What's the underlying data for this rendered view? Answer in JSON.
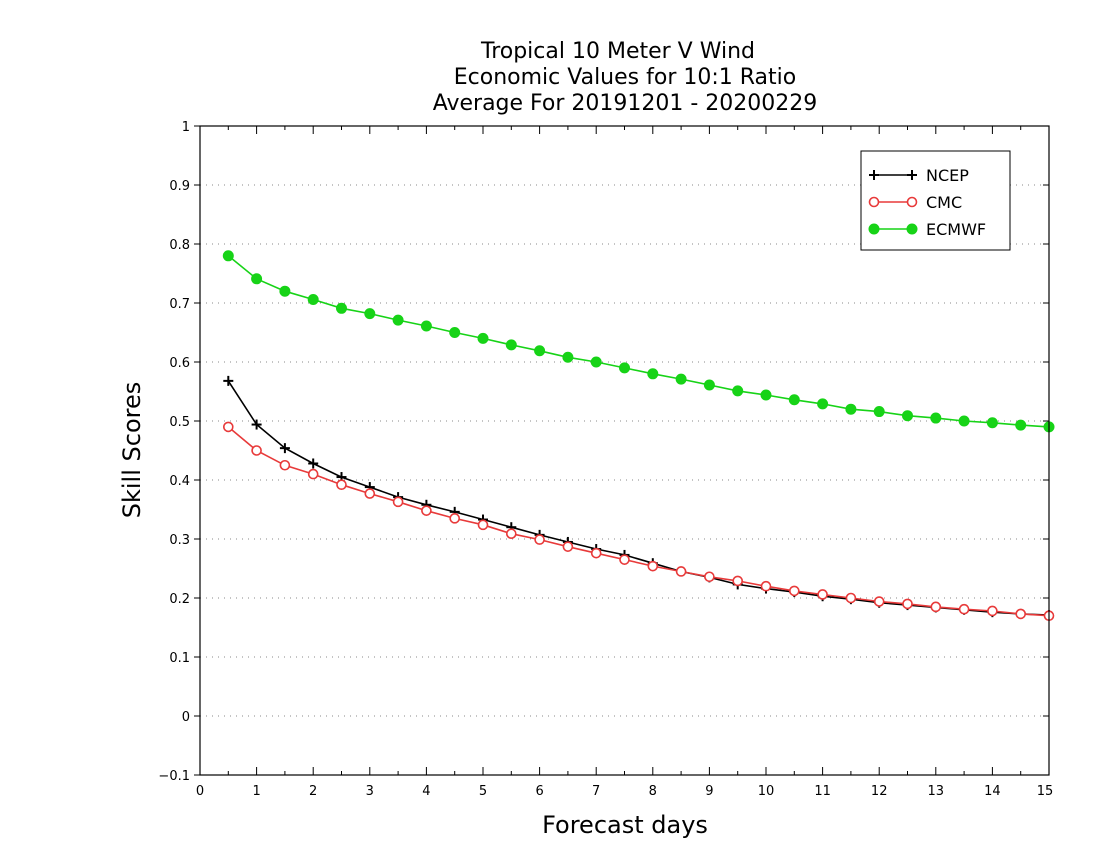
{
  "chart_data": {
    "type": "line",
    "title_lines": [
      "Tropical 10 Meter V Wind",
      "Economic Values for 10:1 Ratio",
      "Average For 20191201 - 20200229"
    ],
    "xlabel": "Forecast days",
    "ylabel": "Skill Scores",
    "xlim": [
      0,
      15
    ],
    "ylim": [
      -0.1,
      1
    ],
    "x_ticks": [
      "0",
      "1",
      "2",
      "3",
      "4",
      "5",
      "6",
      "7",
      "8",
      "9",
      "10",
      "11",
      "12",
      "13",
      "14",
      "15"
    ],
    "y_ticks": [
      "−0.1",
      "0",
      "0.1",
      "0.2",
      "0.3",
      "0.4",
      "0.5",
      "0.6",
      "0.7",
      "0.8",
      "0.9",
      "1"
    ],
    "grid": "horizontal-dotted",
    "legend_position": "top-right",
    "x": [
      0.5,
      1,
      1.5,
      2,
      2.5,
      3,
      3.5,
      4,
      4.5,
      5,
      5.5,
      6,
      6.5,
      7,
      7.5,
      8,
      8.5,
      9,
      9.5,
      10,
      10.5,
      11,
      11.5,
      12,
      12.5,
      13,
      13.5,
      14,
      14.5,
      15
    ],
    "series": [
      {
        "name": "NCEP",
        "color": "#000000",
        "marker": "plus",
        "values": [
          0.568,
          0.494,
          0.454,
          0.428,
          0.405,
          0.388,
          0.371,
          0.358,
          0.346,
          0.333,
          0.32,
          0.307,
          0.295,
          0.283,
          0.273,
          0.259,
          0.245,
          0.235,
          0.223,
          0.216,
          0.21,
          0.203,
          0.198,
          0.192,
          0.188,
          0.184,
          0.18,
          0.176,
          0.173,
          0.171
        ]
      },
      {
        "name": "CMC",
        "color": "#e83a3a",
        "marker": "open-circle",
        "values": [
          0.49,
          0.45,
          0.425,
          0.41,
          0.392,
          0.377,
          0.363,
          0.348,
          0.335,
          0.324,
          0.309,
          0.299,
          0.287,
          0.276,
          0.265,
          0.254,
          0.245,
          0.236,
          0.229,
          0.22,
          0.212,
          0.206,
          0.2,
          0.194,
          0.19,
          0.185,
          0.181,
          0.178,
          0.173,
          0.17
        ]
      },
      {
        "name": "ECMWF",
        "color": "#17d317",
        "marker": "filled-circle",
        "values": [
          0.78,
          0.741,
          0.72,
          0.706,
          0.691,
          0.682,
          0.671,
          0.661,
          0.65,
          0.64,
          0.629,
          0.619,
          0.608,
          0.6,
          0.59,
          0.58,
          0.571,
          0.561,
          0.551,
          0.544,
          0.536,
          0.529,
          0.52,
          0.516,
          0.509,
          0.505,
          0.5,
          0.497,
          0.493,
          0.49
        ]
      }
    ]
  }
}
